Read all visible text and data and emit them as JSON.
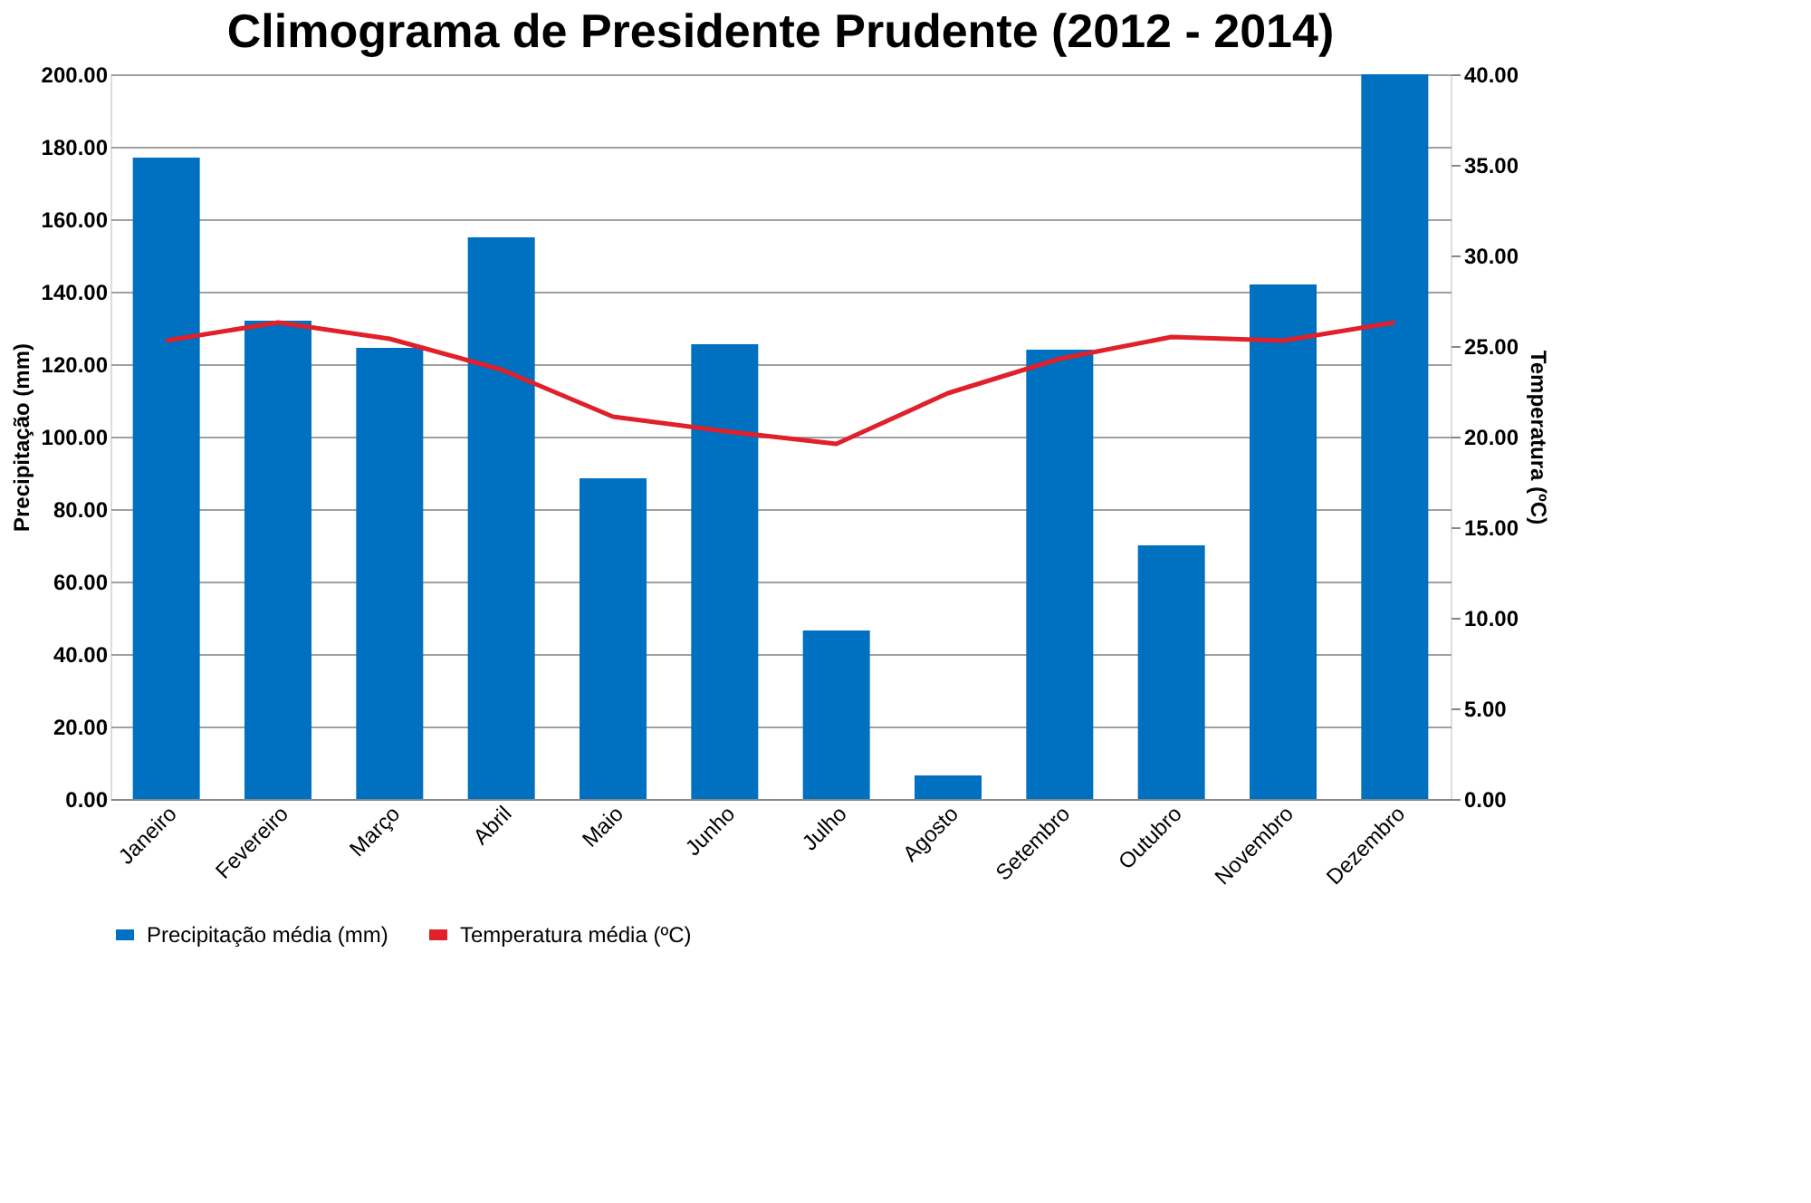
{
  "chart_data": {
    "type": "bar",
    "title": "Climograma de Presidente Prudente (2012 - 2014)",
    "categories": [
      "Janeiro",
      "Fevereiro",
      "Março",
      "Abril",
      "Maio",
      "Junho",
      "Julho",
      "Agosto",
      "Setembro",
      "Outubro",
      "Novembro",
      "Dezembro"
    ],
    "series": [
      {
        "name": "Precipitação média (mm)",
        "color": "#0070c0",
        "values": [
          177,
          132,
          124.5,
          155,
          88.5,
          125.5,
          46.5,
          6.5,
          124,
          70,
          142,
          200
        ]
      },
      {
        "name": "Temperatura média (ºC)",
        "type": "line",
        "axis": "y2",
        "color": "#e0202a",
        "values": [
          25.3,
          26.3,
          25.4,
          23.7,
          21.1,
          20.3,
          19.6,
          22.4,
          24.3,
          25.5,
          25.3,
          26.3
        ]
      }
    ],
    "ylabel": "Precipitação (mm)",
    "y2label": "Temperatura (ºC)",
    "ylim": [
      0,
      200
    ],
    "yticks": [
      {
        "value": 0,
        "label": "0.00"
      },
      {
        "value": 20,
        "label": "20.00"
      },
      {
        "value": 40,
        "label": "40.00"
      },
      {
        "value": 60,
        "label": "60.00"
      },
      {
        "value": 80,
        "label": "80.00"
      },
      {
        "value": 100,
        "label": "100.00"
      },
      {
        "value": 120,
        "label": "120.00"
      },
      {
        "value": 140,
        "label": "140.00"
      },
      {
        "value": 160,
        "label": "160.00"
      },
      {
        "value": 180,
        "label": "180.00"
      },
      {
        "value": 200,
        "label": "200.00"
      }
    ],
    "y2lim": [
      0,
      40
    ],
    "y2ticks": [
      {
        "value": 0,
        "label": "0.00"
      },
      {
        "value": 5,
        "label": "5.00"
      },
      {
        "value": 10,
        "label": "10.00"
      },
      {
        "value": 15,
        "label": "15.00"
      },
      {
        "value": 20,
        "label": "20.00"
      },
      {
        "value": 25,
        "label": "25.00"
      },
      {
        "value": 30,
        "label": "30.00"
      },
      {
        "value": 35,
        "label": "35.00"
      },
      {
        "value": 40,
        "label": "40.00"
      }
    ],
    "grid": "y",
    "legend": "bottom",
    "marker": "none",
    "line_style": "solid"
  }
}
